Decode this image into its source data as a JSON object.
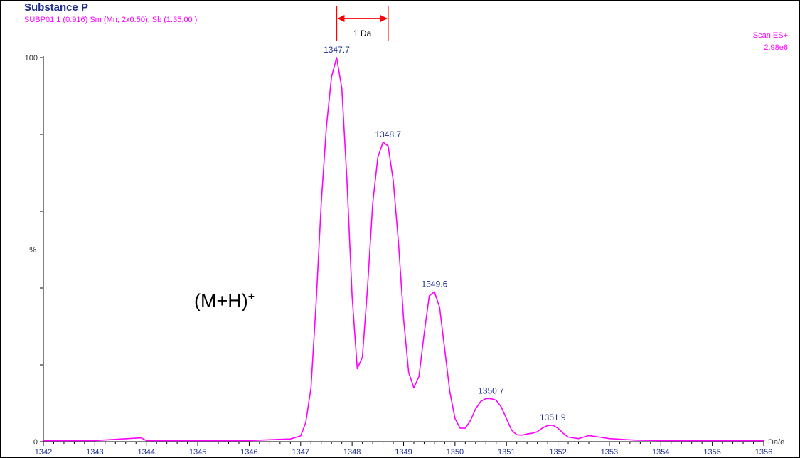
{
  "header": {
    "title": "Substance P",
    "subtitle": "SUBP01 1 (0.916) Sm (Mn, 2x0.50); Sb (1.35,00 )",
    "scan_type": "Scan ES+",
    "scan_intensity": "2.98e6"
  },
  "annotation": {
    "ion_label": "(M+H)",
    "ion_charge": "+"
  },
  "colors": {
    "trace": "#ff00ff",
    "peak_labels": "#1f2f8f",
    "axis": "#000000",
    "spacing_marker": "#ff0000",
    "title": "#1f2f8f"
  },
  "chart_data": {
    "type": "line",
    "title": "Substance P",
    "xlabel": "Da/e",
    "ylabel": "%",
    "xlim": [
      1342,
      1356
    ],
    "ylim": [
      0,
      100
    ],
    "x_ticks": [
      "1342",
      "1343",
      "1344",
      "1345",
      "1346",
      "1347",
      "1348",
      "1349",
      "1350",
      "1351",
      "1352",
      "1353",
      "1354",
      "1355",
      "1356"
    ],
    "y_tick_labels": [
      "0",
      "100"
    ],
    "grid": false,
    "series": [
      {
        "x": [
          1342.0,
          1343.0,
          1343.9,
          1344.0,
          1345.0,
          1346.0,
          1346.8,
          1347.0,
          1347.1,
          1347.2,
          1347.3,
          1347.4,
          1347.5,
          1347.6,
          1347.7,
          1347.8,
          1347.9,
          1348.0,
          1348.1,
          1348.2,
          1348.3,
          1348.4,
          1348.5,
          1348.6,
          1348.7,
          1348.8,
          1348.9,
          1349.0,
          1349.1,
          1349.2,
          1349.3,
          1349.4,
          1349.5,
          1349.6,
          1349.7,
          1349.8,
          1349.9,
          1350.0,
          1350.1,
          1350.2,
          1350.3,
          1350.4,
          1350.5,
          1350.6,
          1350.7,
          1350.8,
          1350.9,
          1351.0,
          1351.1,
          1351.2,
          1351.3,
          1351.4,
          1351.5,
          1351.6,
          1351.7,
          1351.8,
          1351.9,
          1352.0,
          1352.1,
          1352.2,
          1352.4,
          1352.6,
          1352.8,
          1353.0,
          1353.5,
          1354.0,
          1355.0,
          1356.0
        ],
        "y": [
          0.3,
          0.3,
          1.0,
          0.3,
          0.3,
          0.3,
          0.7,
          1.5,
          5,
          14,
          36,
          62,
          82,
          95,
          100,
          92,
          68,
          38,
          19,
          22,
          40,
          62,
          74,
          78,
          77,
          68,
          52,
          32,
          18,
          14,
          17,
          28,
          38,
          39,
          35,
          24,
          13,
          6,
          3.5,
          3.5,
          5.5,
          8.5,
          10.5,
          11.2,
          11.2,
          10.8,
          9,
          6,
          3,
          1.8,
          1.7,
          2,
          2.2,
          2.6,
          3.6,
          4.2,
          4.3,
          3.5,
          2.2,
          1.2,
          0.8,
          1.6,
          1.2,
          0.8,
          0.4,
          0.3,
          0.3,
          0.3
        ]
      }
    ],
    "peak_labels": [
      {
        "x": 1347.7,
        "y": 100,
        "label": "1347.7"
      },
      {
        "x": 1348.7,
        "y": 78,
        "label": "1348.7"
      },
      {
        "x": 1349.6,
        "y": 39,
        "label": "1349.6"
      },
      {
        "x": 1350.7,
        "y": 11.2,
        "label": "1350.7"
      },
      {
        "x": 1351.9,
        "y": 4.3,
        "label": "1351.9"
      }
    ],
    "spacing_marker": {
      "x_start": 1347.7,
      "x_end": 1348.7,
      "label": "1 Da"
    }
  }
}
